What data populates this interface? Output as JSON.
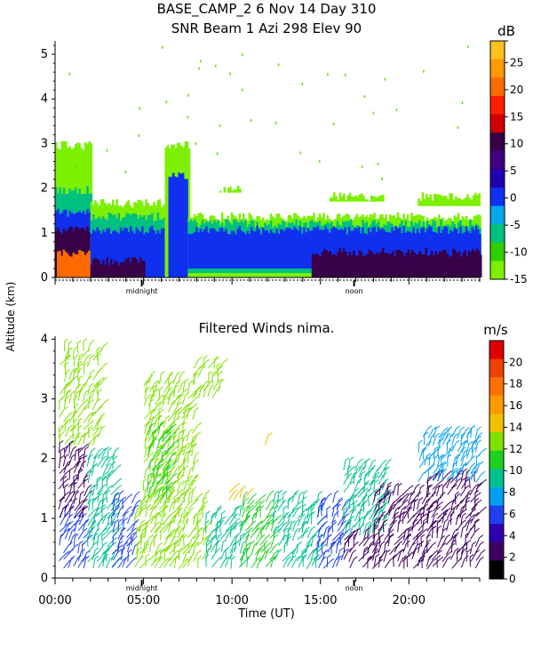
{
  "header": {
    "line1": "BASE_CAMP_2    6 Nov 14 Day 310",
    "line2": "SNR Beam 1 Azi 298 Elev 90"
  },
  "shared_ylabel": "Altitude (km)",
  "chart_data": [
    {
      "type": "heatmap",
      "title": "SNR Beam 1 Azi 298 Elev 90",
      "ylabel": "Altitude (km)",
      "ylim": [
        0,
        5.3
      ],
      "yticks": [
        0,
        1,
        2,
        3,
        4,
        5
      ],
      "xlim": [
        0,
        24
      ],
      "x_marker_labels": [
        {
          "label": "midnight",
          "x": 4.9
        },
        {
          "label": "noon",
          "x": 16.9
        }
      ],
      "colorbar": {
        "unit": "dB",
        "ticks": [
          29,
          25,
          20,
          15,
          10,
          5,
          0,
          -5,
          -10,
          -15
        ],
        "tick_labels": [
          "",
          "25",
          "20",
          "15",
          "10",
          "5",
          "0",
          "-5",
          "-10",
          "-15"
        ],
        "colors": [
          "#7cf000",
          "#30d000",
          "#00c080",
          "#00a8e8",
          "#1030f0",
          "#2000b0",
          "#400080",
          "#380048",
          "#d00000",
          "#ff2000",
          "#ff6a00",
          "#ff9900",
          "#ffc020"
        ]
      },
      "regions": [
        {
          "x0": 0.0,
          "x1": 2.0,
          "y0": 0.0,
          "y1": 3.0,
          "level": -15
        },
        {
          "x0": 0.0,
          "x1": 2.0,
          "y0": 0.0,
          "y1": 2.0,
          "level": -8
        },
        {
          "x0": 0.0,
          "x1": 2.0,
          "y0": 0.0,
          "y1": 1.5,
          "level": 0
        },
        {
          "x0": 0.0,
          "x1": 2.0,
          "y0": 0.0,
          "y1": 1.1,
          "level": 10
        },
        {
          "x0": 0.1,
          "x1": 2.0,
          "y0": 0.0,
          "y1": 0.6,
          "level": 20
        },
        {
          "x0": 2.0,
          "x1": 7.5,
          "y0": 0.0,
          "y1": 1.7,
          "level": -15
        },
        {
          "x0": 2.0,
          "x1": 7.5,
          "y0": 0.0,
          "y1": 1.4,
          "level": -5
        },
        {
          "x0": 2.0,
          "x1": 7.5,
          "y0": 0.0,
          "y1": 1.1,
          "level": 0
        },
        {
          "x0": 2.0,
          "x1": 5.0,
          "y0": 0.0,
          "y1": 0.4,
          "level": 10
        },
        {
          "x0": 6.2,
          "x1": 7.6,
          "y0": 0.0,
          "y1": 3.0,
          "level": -15
        },
        {
          "x0": 6.4,
          "x1": 7.5,
          "y0": 0.0,
          "y1": 2.3,
          "level": 0
        },
        {
          "x0": 7.5,
          "x1": 24.0,
          "y0": 0.0,
          "y1": 1.4,
          "level": -15
        },
        {
          "x0": 7.5,
          "x1": 24.0,
          "y0": 0.1,
          "y1": 1.25,
          "level": -5
        },
        {
          "x0": 7.5,
          "x1": 24.0,
          "y0": 0.2,
          "y1": 1.1,
          "level": 0
        },
        {
          "x0": 14.5,
          "x1": 24.0,
          "y0": 0.0,
          "y1": 0.6,
          "level": 10
        },
        {
          "x0": 15.5,
          "x1": 18.5,
          "y0": 1.7,
          "y1": 1.85,
          "level": -15
        },
        {
          "x0": 20.5,
          "x1": 24.0,
          "y0": 1.6,
          "y1": 1.85,
          "level": -15
        },
        {
          "x0": 9.3,
          "x1": 10.5,
          "y0": 1.9,
          "y1": 2.0,
          "level": -15
        }
      ]
    },
    {
      "type": "scatter",
      "title": "Filtered Winds nima.",
      "xlabel": "Time (UT)",
      "ylabel": "Altitude (km)",
      "xlim": [
        0,
        24
      ],
      "ylim": [
        0,
        4.05
      ],
      "xticks": [
        0,
        5,
        10,
        15,
        20
      ],
      "xtick_labels": [
        "00:00",
        "05:00",
        "10:00",
        "15:00",
        "20:00"
      ],
      "yticks": [
        0,
        1,
        2,
        3,
        4
      ],
      "x_marker_labels": [
        {
          "label": "midnight",
          "x": 4.9
        },
        {
          "label": "noon",
          "x": 16.9
        }
      ],
      "colorbar": {
        "unit": "m/s",
        "ticks": [
          0,
          2,
          4,
          6,
          8,
          10,
          12,
          14,
          16,
          18,
          20
        ],
        "colors": [
          "#000000",
          "#400060",
          "#3000b0",
          "#2040f0",
          "#00a0f0",
          "#00c090",
          "#20d020",
          "#80e000",
          "#f0c000",
          "#ff9900",
          "#ff7000",
          "#f04000",
          "#e00000"
        ]
      },
      "series": [
        {
          "x0": 0.2,
          "x1": 1.8,
          "y0": 0.15,
          "y1": 1.0,
          "speed": 6.5
        },
        {
          "x0": 0.2,
          "x1": 1.8,
          "y0": 1.0,
          "y1": 2.2,
          "speed": 2.5
        },
        {
          "x0": 0.2,
          "x1": 2.5,
          "y0": 2.2,
          "y1": 3.8,
          "speed": 12.5
        },
        {
          "x0": 1.8,
          "x1": 3.2,
          "y0": 0.15,
          "y1": 2.0,
          "speed": 9.0
        },
        {
          "x0": 3.2,
          "x1": 4.5,
          "y0": 0.15,
          "y1": 1.3,
          "speed": 6.5
        },
        {
          "x0": 4.5,
          "x1": 8.5,
          "y0": 0.15,
          "y1": 1.3,
          "speed": 12.5
        },
        {
          "x0": 5.0,
          "x1": 7.8,
          "y0": 1.3,
          "y1": 3.3,
          "speed": 12.5
        },
        {
          "x0": 5.2,
          "x1": 6.5,
          "y0": 1.3,
          "y1": 2.5,
          "speed": 10.5
        },
        {
          "x0": 8.5,
          "x1": 10.5,
          "y0": 0.15,
          "y1": 1.0,
          "speed": 9.0
        },
        {
          "x0": 10.5,
          "x1": 12.3,
          "y0": 0.15,
          "y1": 1.3,
          "speed": 11.5
        },
        {
          "x0": 12.3,
          "x1": 14.8,
          "y0": 0.15,
          "y1": 1.3,
          "speed": 9.0
        },
        {
          "x0": 14.8,
          "x1": 16.3,
          "y0": 0.15,
          "y1": 1.3,
          "speed": 6.5
        },
        {
          "x0": 16.3,
          "x1": 18.0,
          "y0": 0.15,
          "y1": 0.7,
          "speed": 2.5
        },
        {
          "x0": 16.3,
          "x1": 18.5,
          "y0": 0.7,
          "y1": 1.8,
          "speed": 8.5
        },
        {
          "x0": 18.0,
          "x1": 21.0,
          "y0": 0.15,
          "y1": 1.4,
          "speed": 3.0
        },
        {
          "x0": 21.0,
          "x1": 23.8,
          "y0": 0.15,
          "y1": 1.6,
          "speed": 3.0
        },
        {
          "x0": 20.5,
          "x1": 23.8,
          "y0": 1.6,
          "y1": 2.4,
          "speed": 7.0
        },
        {
          "x0": 7.8,
          "x1": 9.3,
          "y0": 3.0,
          "y1": 3.6,
          "speed": 13.0
        },
        {
          "x0": 11.8,
          "x1": 12.3,
          "y0": 2.2,
          "y1": 2.3,
          "speed": 15.0
        },
        {
          "x0": 9.8,
          "x1": 10.8,
          "y0": 1.3,
          "y1": 1.5,
          "speed": 14.0
        }
      ]
    }
  ]
}
